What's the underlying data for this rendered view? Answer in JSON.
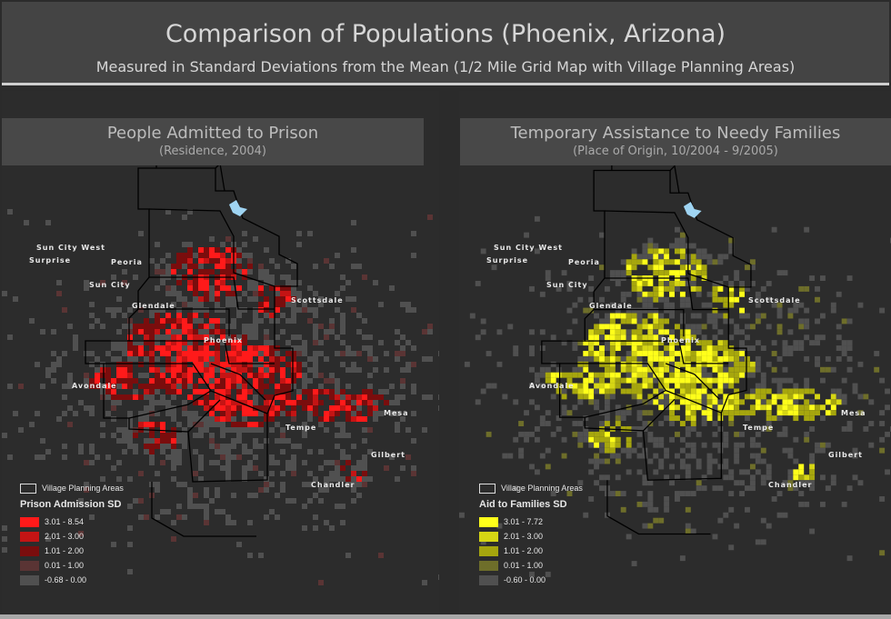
{
  "header": {
    "title": "Comparison of Populations (Phoenix, Arizona)",
    "subtitle": "Measured in Standard Deviations from the Mean (1/2 Mile Grid Map with Village Planning Areas)"
  },
  "cities": [
    {
      "key": "sun_city_west",
      "label": "Sun City West"
    },
    {
      "key": "surprise",
      "label": "Surprise"
    },
    {
      "key": "peoria",
      "label": "Peoria"
    },
    {
      "key": "sun_city",
      "label": "Sun City"
    },
    {
      "key": "glendale",
      "label": "Glendale"
    },
    {
      "key": "scottsdale",
      "label": "Scottsdale"
    },
    {
      "key": "phoenix",
      "label": "Phoenix"
    },
    {
      "key": "avondale",
      "label": "Avondale"
    },
    {
      "key": "tempe",
      "label": "Tempe"
    },
    {
      "key": "mesa",
      "label": "Mesa"
    },
    {
      "key": "gilbert",
      "label": "Gilbert"
    },
    {
      "key": "chandler",
      "label": "Chandler"
    }
  ],
  "panels": {
    "left": {
      "title": "People Admitted to Prison",
      "subtitle": "(Residence, 2004)",
      "legend": {
        "boundary_label": "Village Planning Areas",
        "title": "Prison Admission SD",
        "classes": [
          {
            "label": "3.01 - 8.54",
            "color": "#ff1a1a"
          },
          {
            "label": "2.01 - 3.00",
            "color": "#c41414"
          },
          {
            "label": "1.01 - 2.00",
            "color": "#7a0d0d"
          },
          {
            "label": "0.01 - 1.00",
            "color": "#5a3434"
          },
          {
            "label": "-0.68 - 0.00",
            "color": "#505050"
          }
        ]
      }
    },
    "right": {
      "title": "Temporary Assistance to Needy Families",
      "subtitle": "(Place of Origin, 10/2004 - 9/2005)",
      "legend": {
        "boundary_label": "Village Planning Areas",
        "title": "Aid to Families SD",
        "classes": [
          {
            "label": "3.01 - 7.72",
            "color": "#ffff1a"
          },
          {
            "label": "2.01 - 3.00",
            "color": "#d6d614"
          },
          {
            "label": "1.01 - 2.00",
            "color": "#a6a60e"
          },
          {
            "label": "0.01 - 1.00",
            "color": "#6e6e2a"
          },
          {
            "label": "-0.60 - 0.00",
            "color": "#505050"
          }
        ]
      }
    }
  },
  "colors": {
    "background": "#2b2b2b",
    "boundary": "#000000",
    "lake": "#9fd4f2",
    "accent_left": "#ff1a1a",
    "accent_right": "#ffff1a"
  }
}
